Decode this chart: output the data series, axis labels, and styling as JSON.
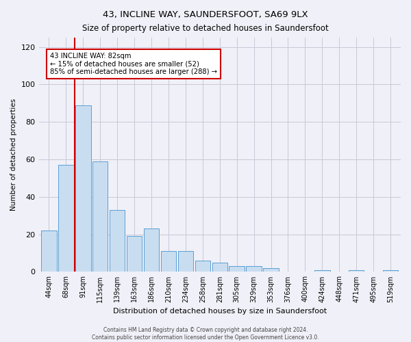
{
  "title1": "43, INCLINE WAY, SAUNDERSFOOT, SA69 9LX",
  "title2": "Size of property relative to detached houses in Saundersfoot",
  "xlabel": "Distribution of detached houses by size in Saundersfoot",
  "ylabel": "Number of detached properties",
  "categories": [
    "44sqm",
    "68sqm",
    "91sqm",
    "115sqm",
    "139sqm",
    "163sqm",
    "186sqm",
    "210sqm",
    "234sqm",
    "258sqm",
    "281sqm",
    "305sqm",
    "329sqm",
    "353sqm",
    "376sqm",
    "400sqm",
    "424sqm",
    "448sqm",
    "471sqm",
    "495sqm",
    "519sqm"
  ],
  "values": [
    22,
    57,
    89,
    59,
    33,
    19,
    23,
    11,
    11,
    6,
    5,
    3,
    3,
    2,
    0,
    0,
    1,
    0,
    1,
    0,
    1
  ],
  "bar_color": "#c9ddf0",
  "bar_edge_color": "#5a9fd4",
  "vline_color": "#cc0000",
  "annotation_line1": "43 INCLINE WAY: 82sqm",
  "annotation_line2": "← 15% of detached houses are smaller (52)",
  "annotation_line3": "85% of semi-detached houses are larger (288) →",
  "annotation_box_color": "white",
  "annotation_box_edge_color": "#cc0000",
  "ylim": [
    0,
    125
  ],
  "yticks": [
    0,
    20,
    40,
    60,
    80,
    100,
    120
  ],
  "footer1": "Contains HM Land Registry data © Crown copyright and database right 2024.",
  "footer2": "Contains public sector information licensed under the Open Government Licence v3.0.",
  "bg_color": "#f0f0f8",
  "grid_color": "#c8c8d8"
}
